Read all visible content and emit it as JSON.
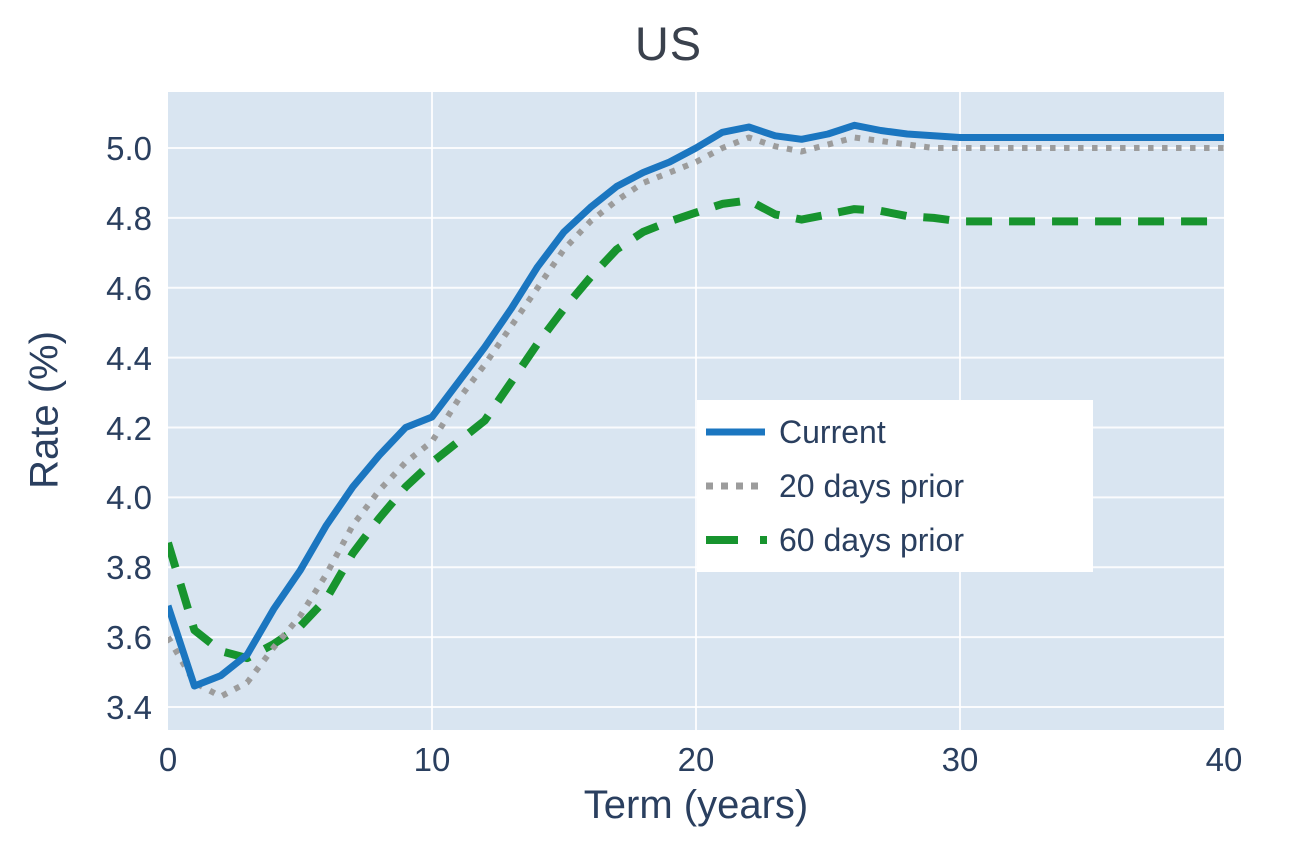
{
  "title": "US",
  "axes": {
    "x": {
      "label": "Term (years)",
      "tick_labels": [
        "0",
        "10",
        "20",
        "30",
        "40"
      ],
      "tick_values": [
        0,
        10,
        20,
        30,
        40
      ],
      "range": [
        0,
        40
      ]
    },
    "y": {
      "label": "Rate (%)",
      "tick_labels": [
        "3.4",
        "3.6",
        "3.8",
        "4.0",
        "4.2",
        "4.4",
        "4.6",
        "4.8",
        "5.0"
      ],
      "tick_values": [
        3.4,
        3.6,
        3.8,
        4.0,
        4.2,
        4.4,
        4.6,
        4.8,
        5.0
      ],
      "range": [
        3.33,
        5.16
      ]
    }
  },
  "legend": {
    "position": "center-right",
    "items": [
      "Current",
      "20 days prior",
      "60 days prior"
    ]
  },
  "colors": {
    "plot_background": "#d9e5f1",
    "gridline": "#ffffff",
    "axis_text": "#2a3f5f",
    "title_text": "#3a414d",
    "current": "#1b76c0",
    "prior20": "#9c9c9c",
    "prior60": "#17942e"
  },
  "chart_data": {
    "type": "line",
    "title": "US",
    "xlabel": "Term (years)",
    "ylabel": "Rate (%)",
    "xlim": [
      0,
      40
    ],
    "ylim": [
      3.33,
      5.16
    ],
    "grid": true,
    "legend_position": "center-right",
    "x": [
      0,
      1,
      2,
      3,
      4,
      5,
      6,
      7,
      8,
      9,
      10,
      11,
      12,
      13,
      14,
      15,
      16,
      17,
      18,
      19,
      20,
      21,
      22,
      23,
      24,
      25,
      26,
      27,
      28,
      29,
      30,
      40
    ],
    "series": [
      {
        "name": "Current",
        "color": "#1b76c0",
        "style": "solid",
        "values": [
          3.69,
          3.46,
          3.49,
          3.55,
          3.68,
          3.79,
          3.92,
          4.03,
          4.12,
          4.2,
          4.23,
          4.33,
          4.43,
          4.54,
          4.66,
          4.76,
          4.83,
          4.89,
          4.93,
          4.96,
          5.0,
          5.045,
          5.06,
          5.035,
          5.025,
          5.04,
          5.065,
          5.05,
          5.04,
          5.035,
          5.03,
          5.03
        ]
      },
      {
        "name": "20 days prior",
        "color": "#9c9c9c",
        "style": "dotted",
        "values": [
          3.6,
          3.47,
          3.43,
          3.47,
          3.57,
          3.66,
          3.78,
          3.92,
          4.02,
          4.1,
          4.16,
          4.28,
          4.38,
          4.49,
          4.6,
          4.71,
          4.79,
          4.85,
          4.9,
          4.93,
          4.96,
          5.0,
          5.03,
          5.005,
          4.99,
          5.01,
          5.03,
          5.02,
          5.01,
          5.0,
          5.0,
          5.0
        ]
      },
      {
        "name": "60 days prior",
        "color": "#17942e",
        "style": "dashed",
        "values": [
          3.87,
          3.62,
          3.56,
          3.54,
          3.58,
          3.63,
          3.71,
          3.84,
          3.94,
          4.03,
          4.1,
          4.16,
          4.22,
          4.33,
          4.44,
          4.54,
          4.63,
          4.71,
          4.76,
          4.79,
          4.815,
          4.84,
          4.85,
          4.81,
          4.795,
          4.81,
          4.825,
          4.82,
          4.805,
          4.8,
          4.79,
          4.79
        ]
      }
    ]
  }
}
